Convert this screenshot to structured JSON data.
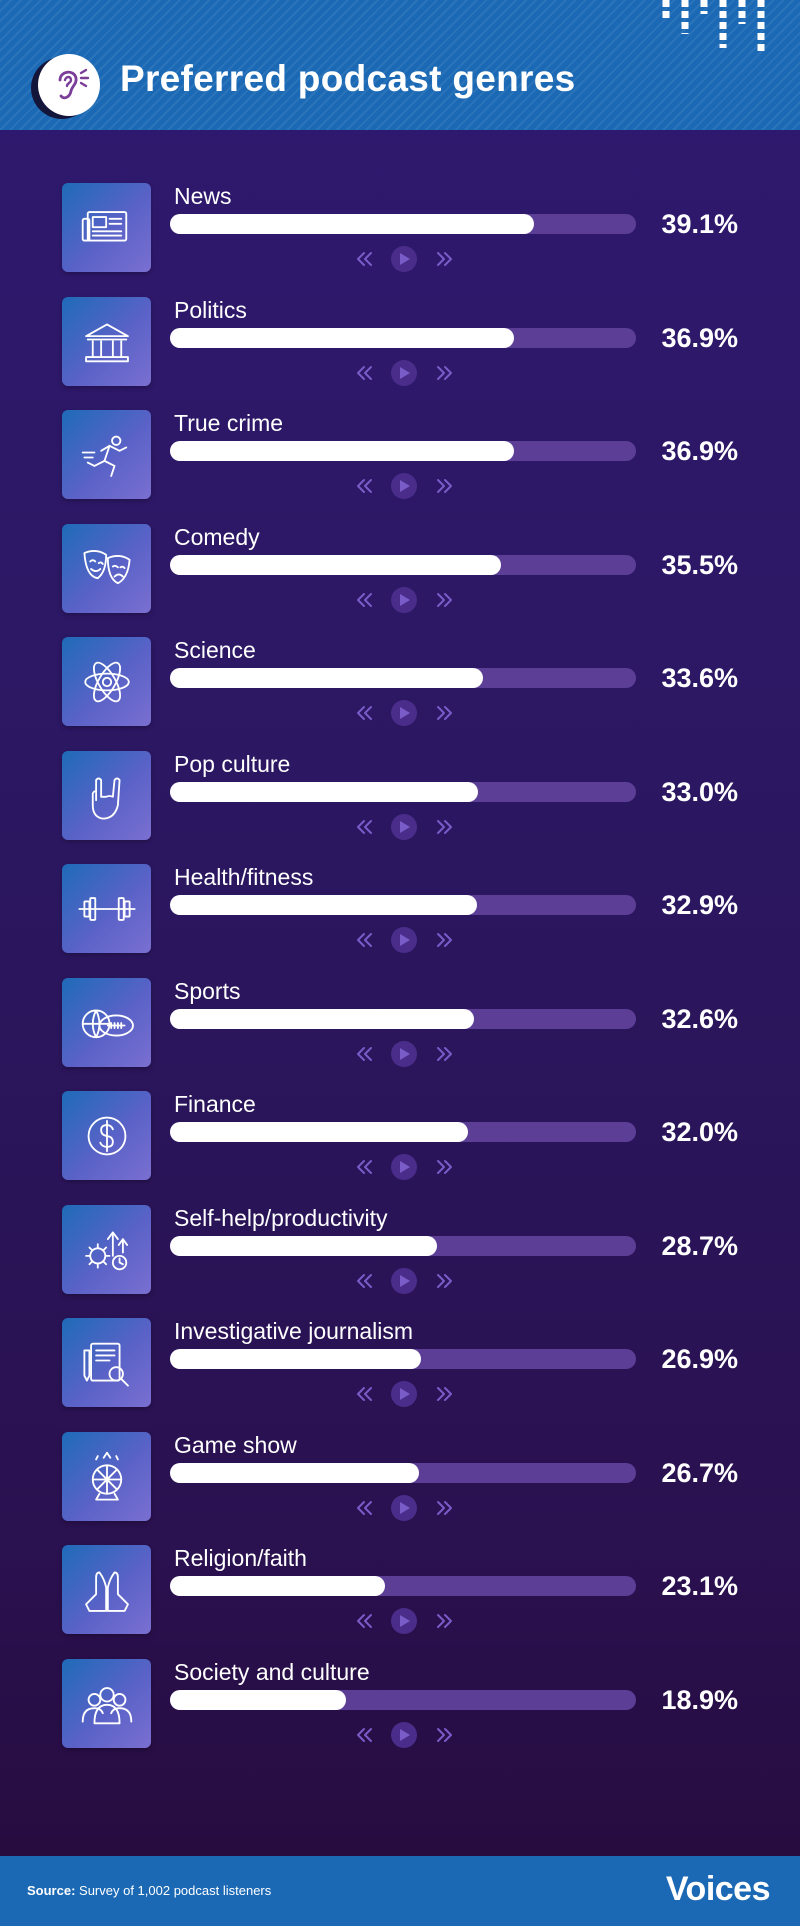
{
  "header": {
    "title": "Preferred podcast genres"
  },
  "footer": {
    "source_label": "Source:",
    "source_text": "Survey of 1,002 podcast listeners",
    "brand": "Voices"
  },
  "colors": {
    "header_bg": "#1b69b5",
    "bar_fill": "#ffffff",
    "bar_track": "#5c3e96",
    "background": "#2b1760"
  },
  "chart_data": {
    "type": "bar",
    "orientation": "horizontal",
    "title": "Preferred podcast genres",
    "value_max": 50,
    "grid": false,
    "categories": [
      "News",
      "Politics",
      "True crime",
      "Comedy",
      "Science",
      "Pop culture",
      "Health/fitness",
      "Sports",
      "Finance",
      "Self-help/productivity",
      "Investigative journalism",
      "Game show",
      "Religion/faith",
      "Society and culture"
    ],
    "values": [
      39.1,
      36.9,
      36.9,
      35.5,
      33.6,
      33.0,
      32.9,
      32.6,
      32.0,
      28.7,
      26.9,
      26.7,
      23.1,
      18.9
    ],
    "value_labels": [
      "39.1%",
      "36.9%",
      "36.9%",
      "35.5%",
      "33.6%",
      "33.0%",
      "32.9%",
      "32.6%",
      "32.0%",
      "28.7%",
      "26.9%",
      "26.7%",
      "23.1%",
      "18.9%"
    ],
    "icons": [
      "newspaper-icon",
      "government-building-icon",
      "running-person-icon",
      "theater-masks-icon",
      "atom-icon",
      "rock-hand-icon",
      "dumbbell-icon",
      "sports-balls-icon",
      "dollar-coin-icon",
      "gear-growth-icon",
      "notebook-magnifier-icon",
      "prize-wheel-icon",
      "praying-hands-icon",
      "people-group-icon"
    ]
  }
}
